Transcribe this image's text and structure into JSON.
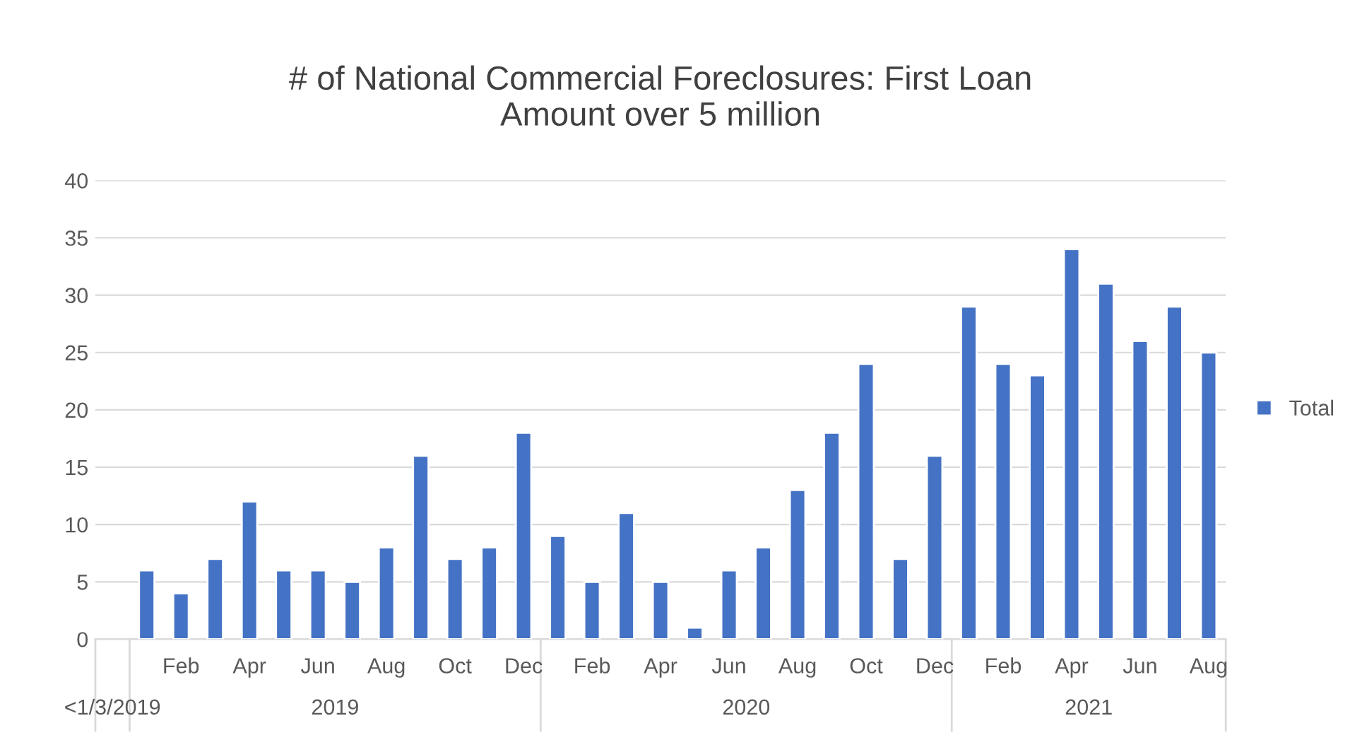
{
  "chart_data": {
    "type": "bar",
    "title": "# of National Commercial Foreclosures: First Loan\nAmount over 5 million",
    "categories": [
      null,
      null,
      "Feb",
      null,
      "Apr",
      null,
      "Jun",
      null,
      "Aug",
      null,
      "Oct",
      null,
      "Dec",
      null,
      "Feb",
      null,
      "Apr",
      null,
      "Jun",
      null,
      "Aug",
      null,
      "Oct",
      null,
      "Dec",
      null,
      "Feb",
      null,
      "Apr",
      null,
      "Jun",
      null,
      "Aug"
    ],
    "series": [
      {
        "name": "Total",
        "color": "#4472c4",
        "values": [
          null,
          6,
          4,
          7,
          12,
          6,
          6,
          5,
          8,
          16,
          7,
          8,
          18,
          9,
          5,
          11,
          5,
          1,
          6,
          8,
          13,
          18,
          24,
          7,
          16,
          29,
          24,
          23,
          34,
          31,
          26,
          29,
          25
        ]
      }
    ],
    "annotations": [
      "<1/3/2019",
      "2019",
      "2020",
      "2021"
    ],
    "ylim": [
      0,
      40
    ],
    "yticks": [
      0,
      5,
      10,
      15,
      20,
      25,
      30,
      35,
      40
    ],
    "grid": "y",
    "legend": "right"
  }
}
